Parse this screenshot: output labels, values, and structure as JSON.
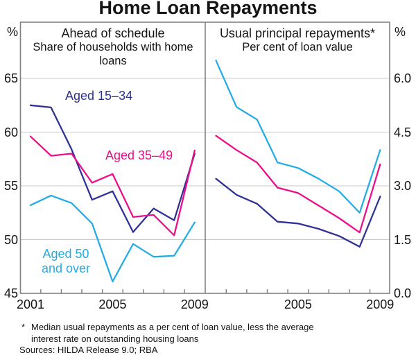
{
  "title": "Home Loan Repayments",
  "colors": {
    "navy": "#2f3292",
    "magenta": "#ec0d8c",
    "cyan": "#25ace6",
    "gridline": "#c9c9c9",
    "frame": "#808080",
    "text": "#141414"
  },
  "chart_data": [
    {
      "type": "line",
      "panel": "left",
      "header": "Ahead of schedule",
      "subheader": "Share of households with home loans",
      "unit": "%",
      "x": [
        2001,
        2002,
        2003,
        2004,
        2005,
        2006,
        2007,
        2008,
        2009
      ],
      "x_tick_labels": [
        {
          "value": 2001,
          "label": "2001"
        },
        {
          "value": 2005,
          "label": "2005"
        },
        {
          "value": 2009,
          "label": "2009"
        }
      ],
      "ylim": [
        45,
        65
      ],
      "yticks": [
        {
          "value": 65,
          "label": "65"
        },
        {
          "value": 60,
          "label": "60"
        },
        {
          "value": 55,
          "label": "55"
        },
        {
          "value": 50,
          "label": "50"
        },
        {
          "value": 45,
          "label": "45"
        }
      ],
      "grid": true,
      "series": [
        {
          "name": "Aged 15–34",
          "color": "#2f3292",
          "values": [
            62.5,
            62.3,
            58.4,
            53.7,
            54.5,
            50.7,
            52.9,
            51.8,
            58.0
          ]
        },
        {
          "name": "Aged 35–49",
          "color": "#ec0d8c",
          "values": [
            59.6,
            57.8,
            58.0,
            55.3,
            56.1,
            52.1,
            52.3,
            50.4,
            58.3
          ]
        },
        {
          "name": "Aged 50 and over",
          "color": "#25ace6",
          "values": [
            53.2,
            54.1,
            53.4,
            51.5,
            46.1,
            49.6,
            48.4,
            48.5,
            51.6
          ]
        }
      ]
    },
    {
      "type": "line",
      "panel": "right",
      "header": "Usual principal repayments*",
      "subheader": "Per cent of loan value",
      "unit": "%",
      "x": [
        2001,
        2002,
        2003,
        2004,
        2005,
        2006,
        2007,
        2008,
        2009
      ],
      "x_tick_labels": [
        {
          "value": 2005,
          "label": "2005"
        },
        {
          "value": 2009,
          "label": "2009"
        }
      ],
      "ylim": [
        0,
        6
      ],
      "yticks": [
        {
          "value": 6.0,
          "label": "6.0"
        },
        {
          "value": 4.5,
          "label": "4.5"
        },
        {
          "value": 3.0,
          "label": "3.0"
        },
        {
          "value": 1.5,
          "label": "1.5"
        },
        {
          "value": 0.0,
          "label": "0.0"
        }
      ],
      "grid": true,
      "series": [
        {
          "name": "Aged 15–34",
          "color": "#2f3292",
          "values": [
            3.2,
            2.75,
            2.5,
            2.0,
            1.95,
            1.8,
            1.6,
            1.3,
            2.7
          ]
        },
        {
          "name": "Aged 35–49",
          "color": "#ec0d8c",
          "values": [
            4.4,
            4.0,
            3.65,
            2.95,
            2.8,
            2.45,
            2.1,
            1.7,
            3.6
          ]
        },
        {
          "name": "Aged 50 and over",
          "color": "#25ace6",
          "values": [
            6.5,
            5.2,
            4.85,
            3.65,
            3.5,
            3.2,
            2.85,
            2.25,
            4.0
          ]
        }
      ]
    }
  ],
  "footnote": {
    "marker": "*",
    "text": "Median usual repayments as a per cent of loan value, less the average interest rate on outstanding housing loans",
    "sources": "Sources: HILDA Release 9.0; RBA"
  }
}
